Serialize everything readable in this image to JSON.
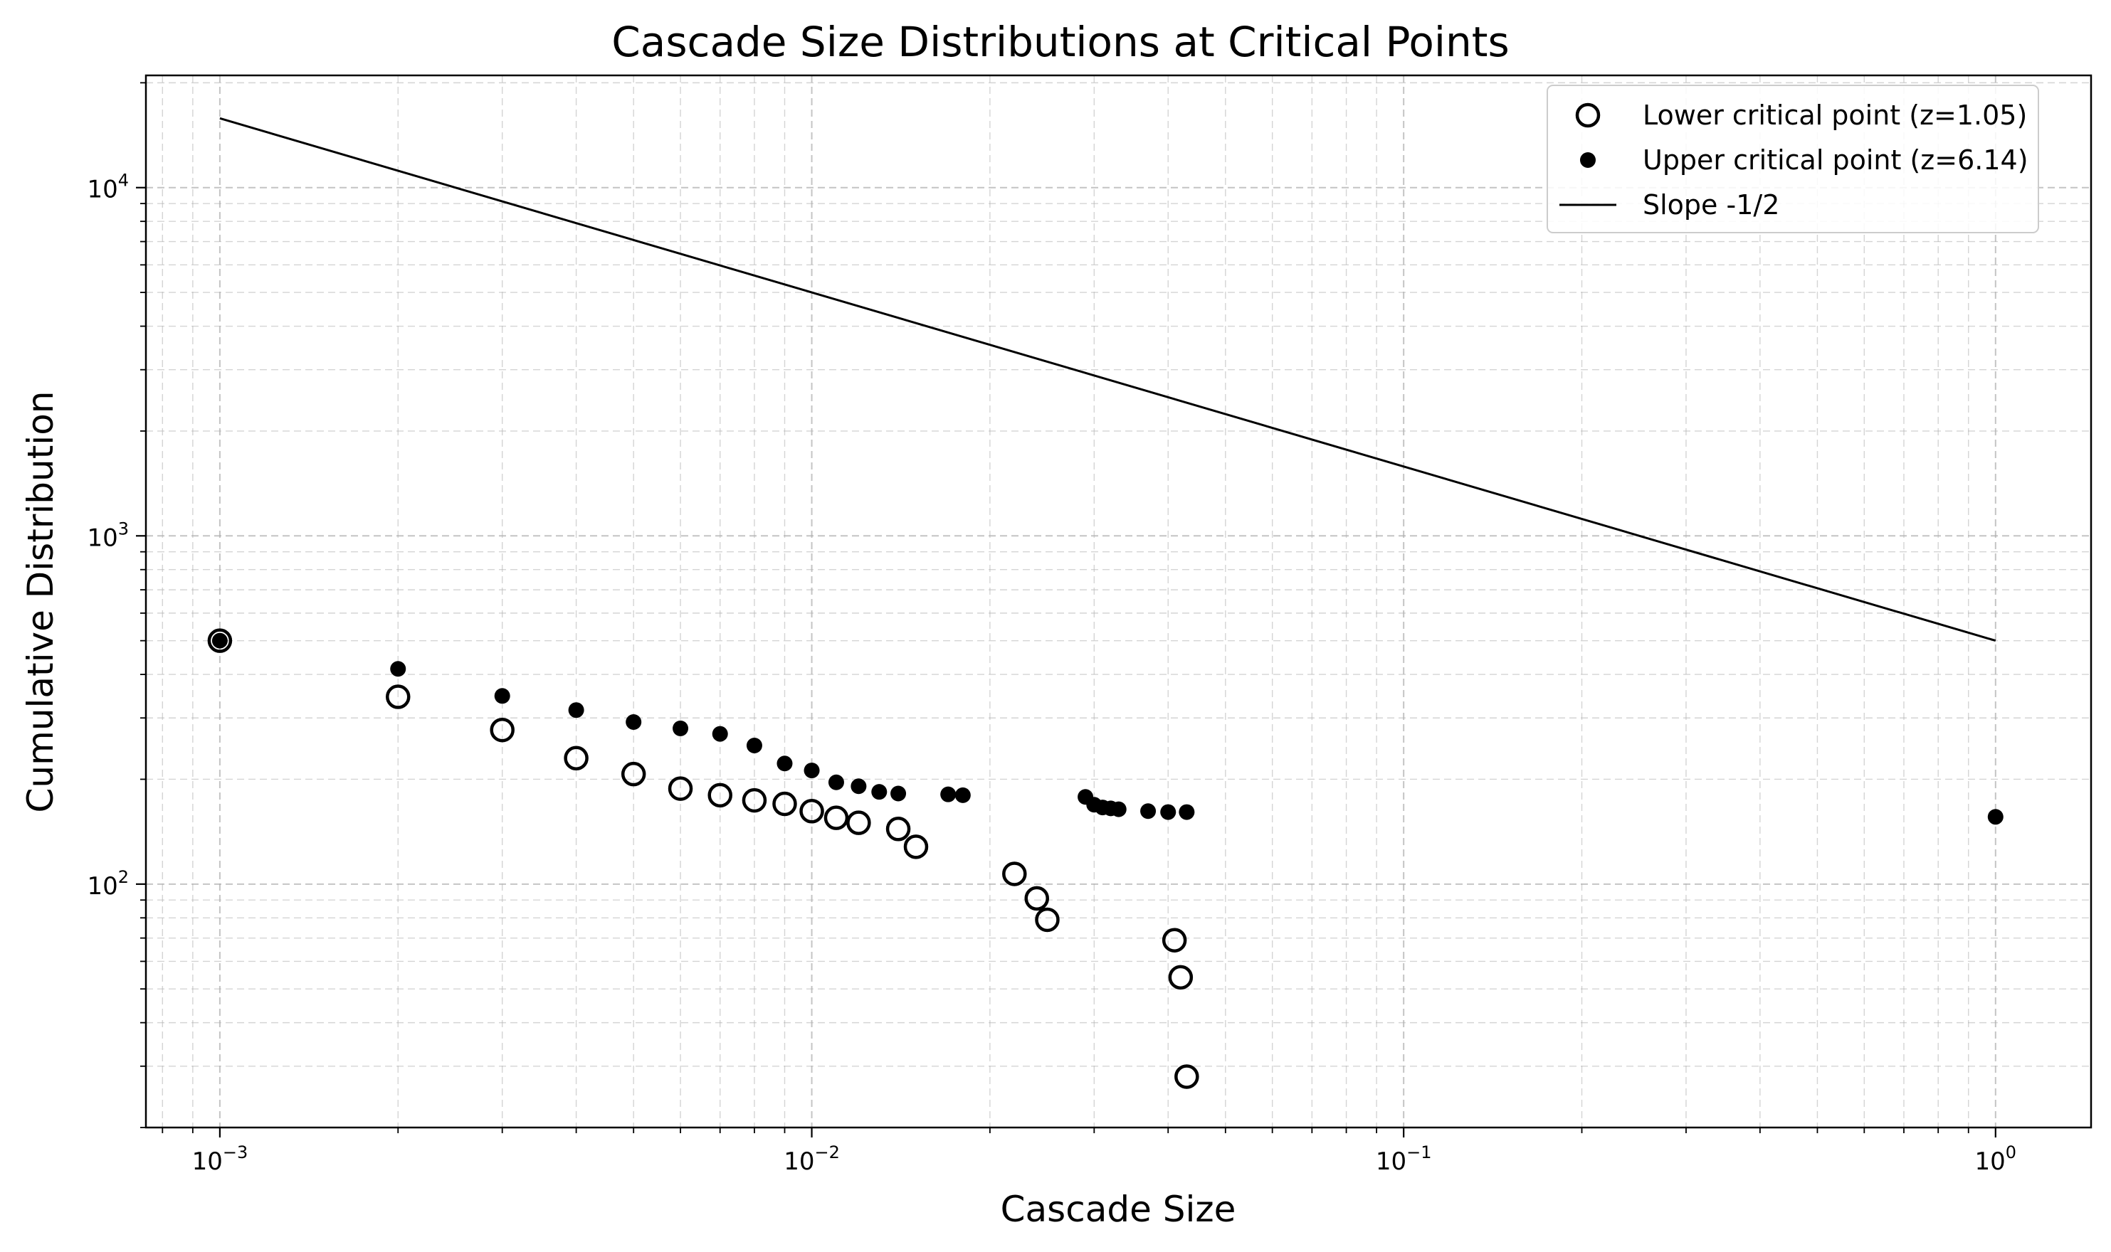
{
  "chart_data": {
    "type": "scatter",
    "title": "Cascade Size Distributions at Critical Points",
    "xlabel": "Cascade Size",
    "ylabel": "Cumulative Distribution",
    "xscale": "log",
    "yscale": "log",
    "xlim": [
      0.00075,
      1.45
    ],
    "ylim": [
      20,
      21000
    ],
    "grid": true,
    "legend_position": "top-right",
    "x_ticks": [
      {
        "value": 0.001,
        "base": "10",
        "exp": "−3"
      },
      {
        "value": 0.01,
        "base": "10",
        "exp": "−2"
      },
      {
        "value": 0.1,
        "base": "10",
        "exp": "−1"
      },
      {
        "value": 1,
        "base": "10",
        "exp": "0"
      }
    ],
    "y_ticks": [
      {
        "value": 100,
        "base": "10",
        "exp": "2"
      },
      {
        "value": 1000,
        "base": "10",
        "exp": "3"
      },
      {
        "value": 10000,
        "base": "10",
        "exp": "4"
      }
    ],
    "series": [
      {
        "name": "Lower critical point (z=1.05)",
        "style": "hollow-circle",
        "color": "#000000",
        "points": [
          [
            0.001,
            500
          ],
          [
            0.002,
            345
          ],
          [
            0.003,
            277
          ],
          [
            0.004,
            230
          ],
          [
            0.005,
            207
          ],
          [
            0.006,
            188
          ],
          [
            0.007,
            180
          ],
          [
            0.008,
            174
          ],
          [
            0.009,
            170
          ],
          [
            0.01,
            162
          ],
          [
            0.011,
            155
          ],
          [
            0.012,
            150
          ],
          [
            0.014,
            144
          ],
          [
            0.015,
            128
          ],
          [
            0.022,
            107
          ],
          [
            0.024,
            91
          ],
          [
            0.025,
            79
          ],
          [
            0.041,
            69
          ],
          [
            0.042,
            54
          ],
          [
            0.043,
            28
          ]
        ]
      },
      {
        "name": "Upper critical point (z=6.14)",
        "style": "filled-circle",
        "color": "#000000",
        "points": [
          [
            0.001,
            500
          ],
          [
            0.002,
            415
          ],
          [
            0.003,
            347
          ],
          [
            0.004,
            316
          ],
          [
            0.005,
            292
          ],
          [
            0.006,
            280
          ],
          [
            0.007,
            270
          ],
          [
            0.008,
            250
          ],
          [
            0.009,
            222
          ],
          [
            0.01,
            212
          ],
          [
            0.011,
            196
          ],
          [
            0.012,
            191
          ],
          [
            0.013,
            184
          ],
          [
            0.014,
            182
          ],
          [
            0.017,
            181
          ],
          [
            0.018,
            180
          ],
          [
            0.029,
            178
          ],
          [
            0.03,
            169
          ],
          [
            0.031,
            166
          ],
          [
            0.032,
            165
          ],
          [
            0.033,
            164
          ],
          [
            0.037,
            162
          ],
          [
            0.04,
            161
          ],
          [
            0.043,
            161
          ],
          [
            1.0,
            156
          ]
        ]
      },
      {
        "name": "Slope -1/2",
        "style": "line",
        "color": "#000000",
        "points": [
          [
            0.001,
            15811
          ],
          [
            1.0,
            500
          ]
        ]
      }
    ]
  }
}
